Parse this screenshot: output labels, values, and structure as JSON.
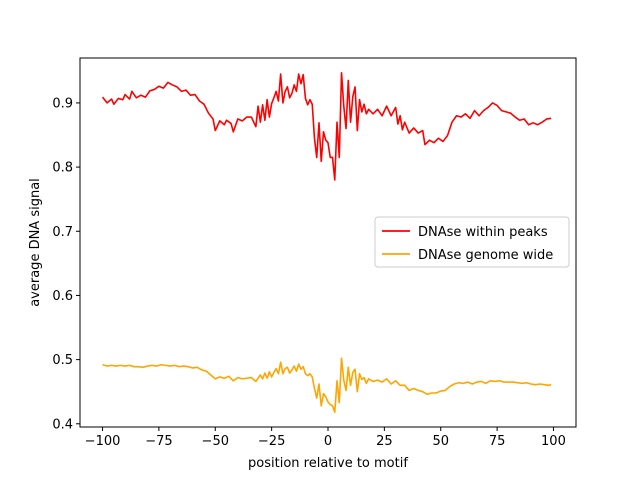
{
  "chart_data": {
    "type": "line",
    "title": "",
    "xlabel": "position relative to motif",
    "ylabel": "average DNA signal",
    "xlim": [
      -110,
      110
    ],
    "ylim": [
      0.395,
      0.97
    ],
    "xticks": [
      -100,
      -75,
      -50,
      -25,
      0,
      25,
      50,
      75,
      100
    ],
    "xtick_labels": [
      "−100",
      "−75",
      "−50",
      "−25",
      "0",
      "25",
      "50",
      "75",
      "100"
    ],
    "yticks": [
      0.4,
      0.5,
      0.6,
      0.7,
      0.8,
      0.9
    ],
    "ytick_labels": [
      "0.4",
      "0.5",
      "0.6",
      "0.7",
      "0.8",
      "0.9"
    ],
    "grid": false,
    "legend": "center-right",
    "series": [
      {
        "name": "DNAse within peaks",
        "color": "#ff0000",
        "points": [
          [
            -100,
            0.909
          ],
          [
            -98,
            0.9
          ],
          [
            -96,
            0.906
          ],
          [
            -95,
            0.898
          ],
          [
            -93,
            0.907
          ],
          [
            -91,
            0.905
          ],
          [
            -90,
            0.913
          ],
          [
            -88,
            0.906
          ],
          [
            -87,
            0.918
          ],
          [
            -85,
            0.908
          ],
          [
            -83,
            0.912
          ],
          [
            -81,
            0.909
          ],
          [
            -79,
            0.919
          ],
          [
            -77,
            0.921
          ],
          [
            -75,
            0.926
          ],
          [
            -73,
            0.923
          ],
          [
            -71,
            0.932
          ],
          [
            -69,
            0.928
          ],
          [
            -67,
            0.925
          ],
          [
            -65,
            0.918
          ],
          [
            -63,
            0.92
          ],
          [
            -61,
            0.912
          ],
          [
            -59,
            0.913
          ],
          [
            -57,
            0.903
          ],
          [
            -55,
            0.898
          ],
          [
            -53,
            0.884
          ],
          [
            -51,
            0.875
          ],
          [
            -50,
            0.857
          ],
          [
            -48,
            0.872
          ],
          [
            -46,
            0.866
          ],
          [
            -45,
            0.873
          ],
          [
            -43,
            0.868
          ],
          [
            -42,
            0.855
          ],
          [
            -40,
            0.875
          ],
          [
            -38,
            0.872
          ],
          [
            -36,
            0.878
          ],
          [
            -34,
            0.878
          ],
          [
            -32,
            0.863
          ],
          [
            -31,
            0.895
          ],
          [
            -30,
            0.87
          ],
          [
            -29,
            0.897
          ],
          [
            -28,
            0.873
          ],
          [
            -27,
            0.905
          ],
          [
            -26,
            0.878
          ],
          [
            -25,
            0.899
          ],
          [
            -24,
            0.908
          ],
          [
            -23,
            0.918
          ],
          [
            -22,
            0.903
          ],
          [
            -21,
            0.945
          ],
          [
            -20,
            0.9
          ],
          [
            -19,
            0.918
          ],
          [
            -18,
            0.925
          ],
          [
            -17,
            0.908
          ],
          [
            -16,
            0.915
          ],
          [
            -15,
            0.928
          ],
          [
            -14,
            0.918
          ],
          [
            -13,
            0.945
          ],
          [
            -12,
            0.93
          ],
          [
            -11,
            0.944
          ],
          [
            -10,
            0.907
          ],
          [
            -9,
            0.897
          ],
          [
            -8,
            0.905
          ],
          [
            -7,
            0.898
          ],
          [
            -6,
            0.845
          ],
          [
            -5,
            0.815
          ],
          [
            -4,
            0.869
          ],
          [
            -3,
            0.809
          ],
          [
            -2,
            0.855
          ],
          [
            -1,
            0.842
          ],
          [
            0,
            0.838
          ],
          [
            1,
            0.815
          ],
          [
            2,
            0.815
          ],
          [
            3,
            0.78
          ],
          [
            4,
            0.87
          ],
          [
            5,
            0.815
          ],
          [
            6,
            0.947
          ],
          [
            7,
            0.895
          ],
          [
            8,
            0.86
          ],
          [
            9,
            0.935
          ],
          [
            10,
            0.87
          ],
          [
            11,
            0.91
          ],
          [
            12,
            0.925
          ],
          [
            13,
            0.857
          ],
          [
            14,
            0.905
          ],
          [
            15,
            0.886
          ],
          [
            16,
            0.898
          ],
          [
            17,
            0.883
          ],
          [
            18,
            0.89
          ],
          [
            20,
            0.883
          ],
          [
            22,
            0.89
          ],
          [
            24,
            0.88
          ],
          [
            26,
            0.895
          ],
          [
            28,
            0.88
          ],
          [
            30,
            0.893
          ],
          [
            31,
            0.867
          ],
          [
            32,
            0.88
          ],
          [
            33,
            0.858
          ],
          [
            34,
            0.87
          ],
          [
            36,
            0.853
          ],
          [
            38,
            0.861
          ],
          [
            40,
            0.853
          ],
          [
            42,
            0.857
          ],
          [
            43,
            0.835
          ],
          [
            45,
            0.842
          ],
          [
            47,
            0.838
          ],
          [
            49,
            0.845
          ],
          [
            51,
            0.84
          ],
          [
            53,
            0.849
          ],
          [
            55,
            0.87
          ],
          [
            57,
            0.88
          ],
          [
            59,
            0.878
          ],
          [
            61,
            0.883
          ],
          [
            63,
            0.876
          ],
          [
            65,
            0.888
          ],
          [
            67,
            0.88
          ],
          [
            69,
            0.888
          ],
          [
            71,
            0.893
          ],
          [
            73,
            0.9
          ],
          [
            75,
            0.896
          ],
          [
            77,
            0.888
          ],
          [
            79,
            0.886
          ],
          [
            81,
            0.884
          ],
          [
            83,
            0.878
          ],
          [
            85,
            0.873
          ],
          [
            87,
            0.875
          ],
          [
            89,
            0.866
          ],
          [
            91,
            0.869
          ],
          [
            93,
            0.866
          ],
          [
            95,
            0.87
          ],
          [
            97,
            0.875
          ],
          [
            99,
            0.876
          ]
        ]
      },
      {
        "name": "DNAse genome wide",
        "color": "#ffa500",
        "points": [
          [
            -100,
            0.492
          ],
          [
            -98,
            0.49
          ],
          [
            -96,
            0.491
          ],
          [
            -94,
            0.49
          ],
          [
            -92,
            0.491
          ],
          [
            -90,
            0.49
          ],
          [
            -88,
            0.491
          ],
          [
            -86,
            0.489
          ],
          [
            -84,
            0.489
          ],
          [
            -82,
            0.488
          ],
          [
            -80,
            0.49
          ],
          [
            -78,
            0.491
          ],
          [
            -76,
            0.49
          ],
          [
            -74,
            0.492
          ],
          [
            -72,
            0.491
          ],
          [
            -70,
            0.49
          ],
          [
            -68,
            0.491
          ],
          [
            -66,
            0.489
          ],
          [
            -64,
            0.49
          ],
          [
            -62,
            0.489
          ],
          [
            -60,
            0.487
          ],
          [
            -58,
            0.488
          ],
          [
            -56,
            0.484
          ],
          [
            -54,
            0.482
          ],
          [
            -52,
            0.476
          ],
          [
            -50,
            0.47
          ],
          [
            -48,
            0.473
          ],
          [
            -46,
            0.471
          ],
          [
            -44,
            0.474
          ],
          [
            -42,
            0.467
          ],
          [
            -40,
            0.472
          ],
          [
            -38,
            0.47
          ],
          [
            -36,
            0.471
          ],
          [
            -34,
            0.472
          ],
          [
            -32,
            0.466
          ],
          [
            -30,
            0.476
          ],
          [
            -29,
            0.47
          ],
          [
            -28,
            0.479
          ],
          [
            -27,
            0.471
          ],
          [
            -26,
            0.481
          ],
          [
            -25,
            0.473
          ],
          [
            -24,
            0.48
          ],
          [
            -23,
            0.486
          ],
          [
            -22,
            0.478
          ],
          [
            -21,
            0.496
          ],
          [
            -20,
            0.478
          ],
          [
            -19,
            0.486
          ],
          [
            -18,
            0.488
          ],
          [
            -17,
            0.479
          ],
          [
            -16,
            0.484
          ],
          [
            -15,
            0.49
          ],
          [
            -14,
            0.482
          ],
          [
            -13,
            0.493
          ],
          [
            -12,
            0.485
          ],
          [
            -11,
            0.489
          ],
          [
            -10,
            0.478
          ],
          [
            -9,
            0.475
          ],
          [
            -8,
            0.478
          ],
          [
            -7,
            0.473
          ],
          [
            -6,
            0.455
          ],
          [
            -5,
            0.44
          ],
          [
            -4,
            0.462
          ],
          [
            -3,
            0.428
          ],
          [
            -2,
            0.447
          ],
          [
            -1,
            0.442
          ],
          [
            0,
            0.434
          ],
          [
            1,
            0.43
          ],
          [
            2,
            0.428
          ],
          [
            3,
            0.418
          ],
          [
            4,
            0.467
          ],
          [
            5,
            0.433
          ],
          [
            6,
            0.502
          ],
          [
            7,
            0.468
          ],
          [
            8,
            0.452
          ],
          [
            9,
            0.488
          ],
          [
            10,
            0.46
          ],
          [
            11,
            0.48
          ],
          [
            12,
            0.485
          ],
          [
            13,
            0.45
          ],
          [
            14,
            0.478
          ],
          [
            15,
            0.469
          ],
          [
            16,
            0.472
          ],
          [
            17,
            0.463
          ],
          [
            18,
            0.47
          ],
          [
            20,
            0.466
          ],
          [
            22,
            0.468
          ],
          [
            24,
            0.465
          ],
          [
            26,
            0.47
          ],
          [
            28,
            0.462
          ],
          [
            30,
            0.467
          ],
          [
            32,
            0.46
          ],
          [
            34,
            0.46
          ],
          [
            36,
            0.452
          ],
          [
            38,
            0.455
          ],
          [
            40,
            0.452
          ],
          [
            42,
            0.45
          ],
          [
            44,
            0.446
          ],
          [
            46,
            0.448
          ],
          [
            48,
            0.448
          ],
          [
            50,
            0.451
          ],
          [
            52,
            0.452
          ],
          [
            54,
            0.458
          ],
          [
            56,
            0.462
          ],
          [
            58,
            0.464
          ],
          [
            60,
            0.463
          ],
          [
            62,
            0.465
          ],
          [
            64,
            0.462
          ],
          [
            66,
            0.465
          ],
          [
            68,
            0.466
          ],
          [
            70,
            0.463
          ],
          [
            72,
            0.467
          ],
          [
            74,
            0.466
          ],
          [
            76,
            0.467
          ],
          [
            78,
            0.465
          ],
          [
            80,
            0.465
          ],
          [
            82,
            0.465
          ],
          [
            84,
            0.464
          ],
          [
            86,
            0.463
          ],
          [
            88,
            0.464
          ],
          [
            90,
            0.462
          ],
          [
            92,
            0.461
          ],
          [
            94,
            0.462
          ],
          [
            96,
            0.461
          ],
          [
            98,
            0.46
          ],
          [
            99,
            0.461
          ]
        ]
      }
    ]
  }
}
